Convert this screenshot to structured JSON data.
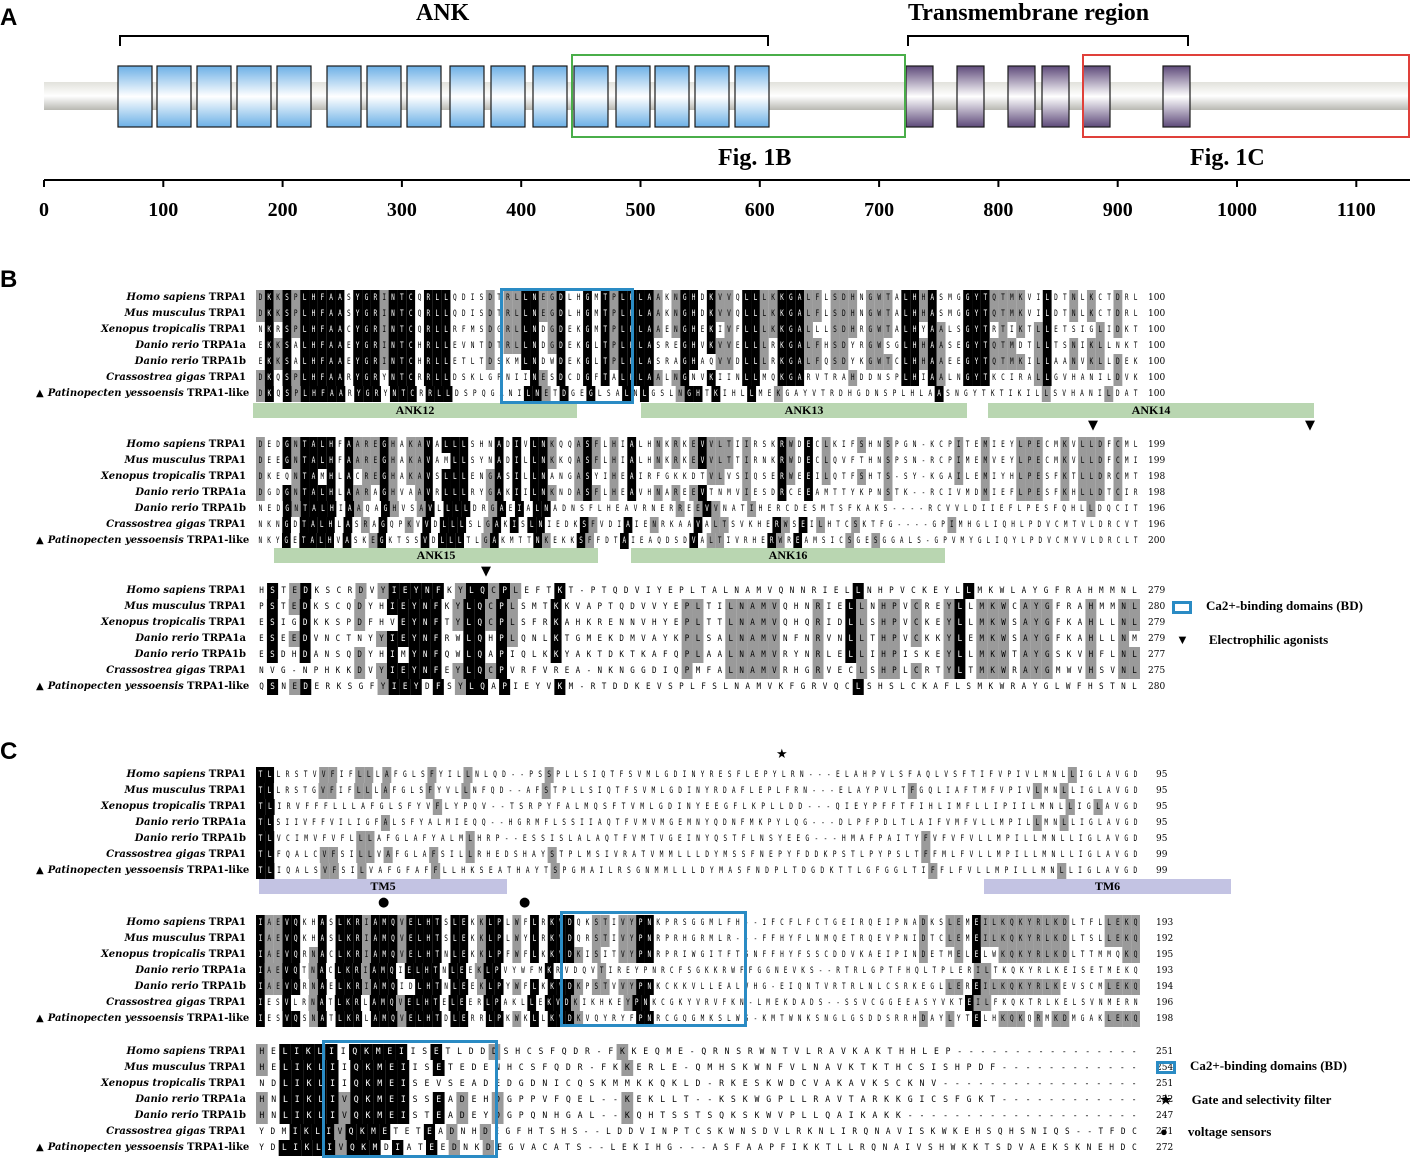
{
  "panels": {
    "a": "A",
    "b": "B",
    "c": "C"
  },
  "top": {
    "ank_label": "ANK",
    "tm_label": "Transmembrane region",
    "fig1b": "Fig. 1B",
    "fig1c": "Fig. 1C",
    "ticks": [
      "0",
      "100",
      "200",
      "300",
      "400",
      "500",
      "600",
      "700",
      "800",
      "900",
      "1000",
      "1100"
    ],
    "colors": {
      "ank_fill": "#a9d0ef",
      "tm_fill": "#8d7ba3",
      "fig1b_box": "#4aae4a",
      "fig1c_box": "#e0403a"
    }
  },
  "species": [
    {
      "genus": "Homo sapiens",
      "gene": "TRPA1",
      "triangle": ""
    },
    {
      "genus": "Mus musculus",
      "gene": "TRPA1",
      "triangle": ""
    },
    {
      "genus": "Xenopus tropicalis",
      "gene": "TRPA1",
      "triangle": ""
    },
    {
      "genus": "Danio rerio",
      "gene": "TRPA1a",
      "triangle": ""
    },
    {
      "genus": "Danio rerio",
      "gene": "TRPA1b",
      "triangle": ""
    },
    {
      "genus": "Crassostrea gigas",
      "gene": "TRPA1",
      "triangle": ""
    },
    {
      "genus": "Patinopecten yessoensis",
      "gene": "TRPA1-like",
      "triangle": "▲"
    }
  ],
  "panel_b": {
    "blocks": [
      {
        "rows": [
          "DKKSPLHFAASYGRINTCQRLLQDISDTRLLNEGDLHGMTPLHLAAKNGHDKVVQLLLKKGALFLSDHNGWTALHHASMGGYTQTMKVILDTNLKCTDRL",
          "DKKSPLHFAASYGRINTCQRLLQDISDTRLLNEGDLHGMTPLHLAAKNGHDKVVQLLLKKGALFLSDHNGWTALHHASMGGYTQTMKVILDTNLKCTDRL",
          "NKRSPLHFAACYGRINTCQRLLRFMSDGRLLNDGDEKGMTPLHLAAENGHEKIVFLLLKKGALLLSDHRGWTALHYAALSGYTRTIKTLLETSIGLIDKT",
          "EKKSALHFAAEYGRINTCHRLLEVNTDTRLLNDGDEKGLTPLHLASREGHVKVVELLLRKGALFHSDYRGWSGLHHAASEGYTQTMDTLLTSNIKLLNKT",
          "EKKSALHFAAEYGRINTCHRLLETLTDSKMLNDWDEKGLTPLHLASRAGHAQVVDLLLRKGALFQSDYKGWTCLHHAAEEGYTQTMKILLAANVKLLDEK",
          "DKQSPLHFAARYGRYNTCRRLLDSKLGPNIINESDCDGFTALHLAALNGNVKIINLLMQKGARVTRAHDDNSPLHIAALNGYTKCIRALLGVHANILDVK",
          "DKQSPLHFAARYGRYNTCRRLLDSPQGANILNETDGEGLSALNLGSLNGHTKIHLLMEKGAYVTRDHGDNSPLHLAASNGYTKTIKILLSVHANILDAT"
        ],
        "nums": [
          "100",
          "100",
          "100",
          "100",
          "100",
          "100",
          "100"
        ],
        "bars": [
          {
            "label": "ANK12"
          },
          {
            "label": "ANK13"
          },
          {
            "label": "ANK14"
          }
        ]
      },
      {
        "rows": [
          "DEDGNTALHFAAREGHAKAVALLLSHNADIVLNKQQASFLHIALHNKRKEVVLTIIRSKRWDECLKIFSHNSPGN-KCPITEMIEYLPECMKVLLDFCML",
          "DEEGNTALHFAAREGHAKAVAMLLSYNADILLNKKQASFLHIALHNKRKEVVLTTIRNKRWDECLQVFTHNSPSN-RCPIMEMVEYLPECMKVLLDFCMI",
          "DKEQNTAMHLACREGHAKAVSLLLENGASILLNANGASYIHEAIRFGKKDTVLVSIQSERWEEILQTFSHTS-SY-KGAILEMIYHLPESFKTLLDRCMT",
          "DGDGNTALHLAARAGHVAAVRLLLRYGAKIILNKNDASFLHEAVHNAREEVTNMVIESDRCEEAMTTYKPNSTK--RCIVMDMIEFLPESFKHLLDTCIR",
          "NEDGNTALHIAAQAGHVSAVLLLLDRGAEIALNADNSFLHEAVRNERREEVVNATIHERCDESMTSFKAKS----RCVVLDIIEFLPESFQHLLDQCIT",
          "NKNGDTALHLASRAGQPKVVDLLLSLGAKISLNIEDKSFVDIAIENRKAAVALTSVKHERWSEILHTCSKTFG----GPIMHGLIQHLPDVCMTVLDRCVT",
          "NKYGETALHVASKEGKTSSVDLLLTLGAKMTTNKEKKSFFDTAIEAQDSDVALTIVRHERWREAMSICSGESGGALS-GPVMYGLIQYLPDVCMVVLDRCLT"
        ],
        "nums": [
          "199",
          "199",
          "198",
          "198",
          "196",
          "196",
          "200"
        ],
        "bars": [
          {
            "label": "ANK15"
          },
          {
            "label": "ANK16"
          }
        ]
      },
      {
        "rows": [
          "HSTEDKSCRDVYIEYNFKYLQCPLEFTKT-PTQDVIYEPLTALNAMVQNNRIELLNHPVCKEYLLMKWLAYGFRAHMMNL",
          "PSTEDKSCQDYHIEYNFKYLQCPLSMTKKVAPTQDVVYEPLTILNAMVQHNRIELLNHPVCREYLLMKWCAYGFRAHMMNL",
          "ESIGDKKSPDFHVEYNFTYLQCPLSFRKAHKRENNVHYEPLTTLNAMVQHQRIDLLSHPVCKEYLLMKWSAYGFKAHLLNL",
          "ESEEDVNCTNYYIEYNFRWLQHPLQNLKTGMEKDMVAYKPLSALNAMVNFNRVNLLTHPVCKKYLEMKWSAYGFKAHLLNM",
          "ESDHDANSQDYHIMYNFQWLQAPIQLKKYAKTDKTKAFQPLAALNAMVRYNRLELLIHPISKEYLLMKWTAYGSKVHFLNL",
          "NVG-NPHKKDVYIEYNFEYLQCPVRFVREA-NKNGGDIQPMFALNAMVRHGRVECLSHPLCRTYLTMKWRAYGMWVHSVNL",
          "QSNEDERKSGFYIEYDFSYLQAPIEYVKM-RTDDKEVSPLFSLNAMVKFGRVQCLSHSLCKAFLSMKWRAYGLWFHSTNL"
        ],
        "nums": [
          "279",
          "280",
          "279",
          "279",
          "277",
          "275",
          "280"
        ],
        "bars": []
      }
    ],
    "legend": {
      "bd": "Ca2+-binding domains (BD)",
      "electrophilic": "Electrophilic agonists"
    }
  },
  "panel_c": {
    "blocks": [
      {
        "rows": [
          "TLLRSTVVFIFLLLAFGLSFYILLNLQD--PSSPLLSIQTFSVMLGDINYRESFLEPYLRN---ELAHPVLSFAQLVSFTIFVPIVLMNLLIGLAVGD",
          "TLLRSTGVFIFLLLAFGLSFYVLLNFQD--AFSTPLLSIQTFSVMLGDINYRDAFLEPLFRN---ELAYPVLTFGQLIAFTMFVPIVLMNLLIGLAVGD",
          "TLIRVFFFLLLAFGLSFYVFLYPQV--TSRPYFALMQSFTVMLGDINYEEGFLKPLLDD---QIEYPFFTFIHLIMFLLIPIILMNLLIGLAVGD",
          "TLSIIVFFVILIGFALSFYALMIEQQ--HGRMFLSSIIAQTFVMVMGEMNYQDNFMKPYLQG---DLPFPDLTLAIFVMFVLLMPILLMNLLIGLAVGD",
          "TLVCIMVFVFLLLAFGLAFYALMLHRP--ESSISLALAQTFVMTVGEINYQSTFLNSYEEG---HMAFPAITYFVFVFVLLMPILLMNLLIGLAVGD",
          "TLFQALCVFSILLVAFGLAFSILLRHEDSHAYSTPLMSIVRATVMMLLLDYMSSFNEPYFDDKPSTLPYPSLTFFMLFVLLMPILLMNLLIGLAVGD",
          "TLIQALSVFSILVAFGFAFFLLHKSEATHAYTSPGMAILRSGNMMLLLDYMASFNDPLTDGDKTTLGFGGLTIFFLFVLLMPILLMNLLIGLAVGD"
        ],
        "nums": [
          "95",
          "95",
          "95",
          "95",
          "95",
          "99",
          "99"
        ],
        "bars": [
          {
            "label": "TM5"
          },
          {
            "label": "TM6"
          }
        ]
      },
      {
        "rows": [
          "IAEVQKHASLKRIAMQVELHTSLEKKLPLWFLRKVDQKSTIVYPNKPRSGGMLFH--IFCFLFCTGEIRQEIPNADKSLEMEILKQKYRLKDLTFLLEKQ",
          "IAEVQKHASLKRIAMQVELHTSLEKKLPLWYLRKVDQRSTIVYPNRPRHGRMLR---FFHYFLNMQETRQEVPNIDTCLEMEILKQKYRLKDLTSLLEKQ",
          "IAEVQRNACLKRIAMQVELHTNLEKKLPFWFLKKVDKISITVYPNRPRIWGITFTSNFFHYFSSCDDVKAEIPINDETMELELWKQKYRLKDLTTMMQKQ",
          "IAEVQTNACLKRIAMQIELHTNLEEKLPVYWFMKRVDQVTIREYPNRCFSGKKRWFFGGNEVKS--RTRLGPTFHQLTPLERILTKQKYRLKEISETMEKQ",
          "IAEVQRNAELKRIAMQIDLHTNLEEKLPYWFLKKVDKPSTVVYPNKCKKVLLEALVHG-EIQNTVRTRLNLCSRKEGLLEREILKQKYRLKEVSCMLEKQ",
          "IESVLRNATLKRLAMQVELHTELEERLPAKLLEKVDKIKHKEYPNKCGKYVRVFKN-LMEKDADS--SSVCGGEEASYVKTEILFKQKTRLKELSVNMERN",
          "IESVQSNATLKRLAMQVELHTDLERRLPKWKLLKVDKVQYRYFPNRCGQGMKSLWS-KMTWNKSNGLGSDDSRRHDAYLYTELHKQKQRMKDMGAKLEKQ"
        ],
        "nums": [
          "193",
          "192",
          "195",
          "193",
          "194",
          "196",
          "198"
        ],
        "bars": []
      },
      {
        "rows": [
          "HELIKLIIQKMEIISETLDDDSHCSFQDR-FKKEQME-QRNSRWNTVLRAVKAKTHHLEP----------------",
          "HELIKLIIQKMEIISETEDENHCSFQDR-FKKERLE-QMHSKWNFVLNAVKTKTHCSISHPDF------------",
          "NDLIKLIIQKMEISEVSEADEDGDNICQSKMMKKQKLD-RKESKWDCVAKAVKSCKNV-----------------",
          "HNLIKLIVQKMEISSEADEHDGPPVFQEL--KEKLLT--KSKWGPLLRAVTARKKGICSFGKT------------",
          "HNLIKLIVQKMEISTEADEYDGPQNHGAL--KQHTSSTSQKSKWVPLLQAIKAKK--------------------",
          "YDMIKLIVQKMETETEADNHDEGFHTSHS--LDDVINPTCSKWNSDVLRKNLIRQNAVISKWKEHSQHSNIQS--TFDC",
          "YDLIKLIVQKMDIATEEDNKDEGVACATS--LEKIHG---ASFAAPFIKKTLLRQNAIVSHWKKTSDVAEKSKNEHDC"
        ],
        "nums": [
          "251",
          "254",
          "251",
          "252",
          "247",
          "271",
          "272"
        ],
        "bars": []
      }
    ],
    "legend": {
      "bd": "Ca2+-binding domains (BD)",
      "gate": "Gate and selectivity filter",
      "voltage": "voltage sensors"
    }
  }
}
